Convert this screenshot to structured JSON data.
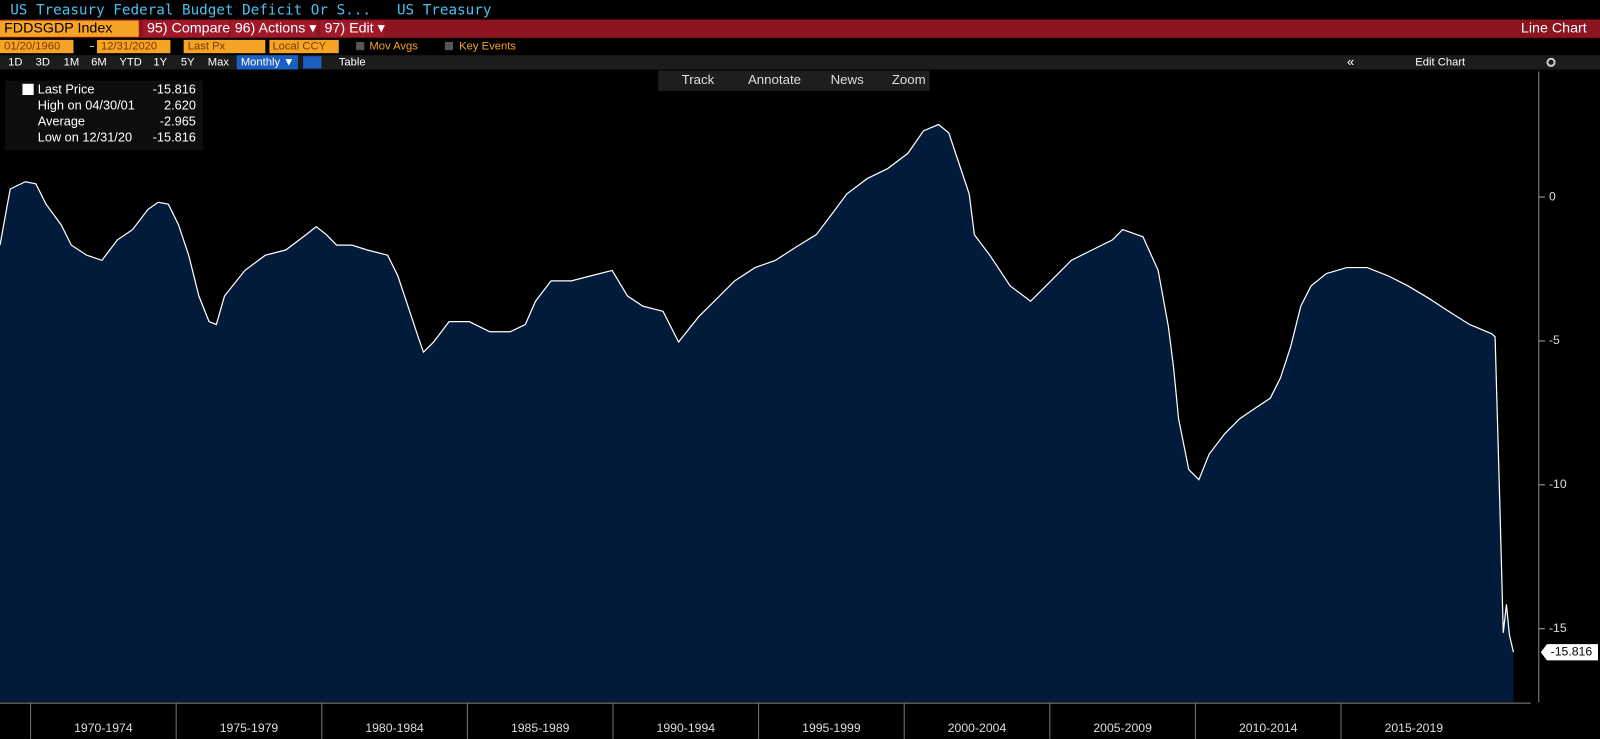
{
  "header": {
    "title": "US Treasury Federal Budget Deficit Or S...",
    "source": "US Treasury",
    "ticker": "FDDSGDP Index",
    "menu": [
      "95) Compare",
      "96) Actions ▾",
      "97) Edit ▾"
    ],
    "view": "Line Chart"
  },
  "controls": {
    "start_date": "01/20/1960",
    "end_date": "12/31/2020",
    "field": "Last Px",
    "currency": "Local CCY",
    "options": [
      "Mov Avgs",
      "Key Events"
    ],
    "ranges": [
      "1D",
      "3D",
      "1M",
      "6M",
      "YTD",
      "1Y",
      "5Y",
      "Max"
    ],
    "frequency": "Monthly ▼",
    "table": "Table",
    "edit_chart": "Edit Chart"
  },
  "toolbar": [
    "Track",
    "Annotate",
    "News",
    "Zoom"
  ],
  "legend": [
    {
      "label": "Last Price",
      "value": "-15.816"
    },
    {
      "label": "High on 04/30/01",
      "value": "2.620"
    },
    {
      "label": "Average",
      "value": "-2.965"
    },
    {
      "label": "Low on 12/31/20",
      "value": "-15.816"
    }
  ],
  "chart_data": {
    "type": "area",
    "color": "#ffffff",
    "fill": "#031b3a",
    "xlim": [
      1968.95,
      2021.51
    ],
    "ylim": [
      -17.55,
      4.36
    ],
    "xticks": [
      {
        "value": 1970,
        "label": "1970-1974"
      },
      {
        "value": 1975,
        "label": "1975-1979"
      },
      {
        "value": 1980,
        "label": "1980-1984"
      },
      {
        "value": 1985,
        "label": "1985-1989"
      },
      {
        "value": 1990,
        "label": "1990-1994"
      },
      {
        "value": 1995,
        "label": "1995-1999"
      },
      {
        "value": 2000,
        "label": "2000-2004"
      },
      {
        "value": 2005,
        "label": "2005-2009"
      },
      {
        "value": 2010,
        "label": "2010-2014"
      },
      {
        "value": 2015,
        "label": "2015-2019"
      }
    ],
    "yticks": [
      0,
      -5,
      -10,
      -15
    ],
    "series": [
      {
        "color": "#ffffff",
        "x": [
          1968.95,
          1969.3,
          1969.82,
          1970.18,
          1970.53,
          1971.05,
          1971.4,
          1971.93,
          1972.45,
          1972.98,
          1973.5,
          1974.03,
          1974.38,
          1974.73,
          1975.08,
          1975.43,
          1975.78,
          1976.13,
          1976.38,
          1976.66,
          1977.36,
          1978.06,
          1978.76,
          1979.46,
          1979.81,
          1980.16,
          1980.51,
          1981.04,
          1981.56,
          1982.26,
          1982.61,
          1982.96,
          1983.31,
          1983.49,
          1983.84,
          1984.37,
          1985.07,
          1985.77,
          1986.47,
          1986.99,
          1987.34,
          1987.87,
          1988.57,
          1989.27,
          1989.97,
          1990.5,
          1991.02,
          1991.72,
          1992.25,
          1992.95,
          1993.48,
          1994.18,
          1994.88,
          1995.58,
          1996.28,
          1996.98,
          1997.51,
          1998.03,
          1998.73,
          1999.43,
          2000.13,
          2000.66,
          2001.18,
          2001.53,
          2001.88,
          2002.23,
          2002.41,
          2002.94,
          2003.64,
          2004.34,
          2005.04,
          2005.74,
          2006.45,
          2007.15,
          2007.5,
          2008.2,
          2008.72,
          2009.07,
          2009.25,
          2009.42,
          2009.77,
          2010.12,
          2010.47,
          2011.0,
          2011.52,
          2012.05,
          2012.57,
          2012.92,
          2013.27,
          2013.62,
          2013.97,
          2014.5,
          2015.2,
          2015.9,
          2016.6,
          2017.3,
          2018.0,
          2018.7,
          2019.41,
          2020.18,
          2020.29,
          2020.46,
          2020.57,
          2020.68,
          2020.78,
          2020.92
        ],
        "values": [
          -1.67,
          0.28,
          0.53,
          0.46,
          -0.25,
          -0.96,
          -1.67,
          -2.02,
          -2.2,
          -1.49,
          -1.13,
          -0.43,
          -0.18,
          -0.25,
          -0.96,
          -2.02,
          -3.44,
          -4.33,
          -4.43,
          -3.44,
          -2.55,
          -2.02,
          -1.84,
          -1.31,
          -1.03,
          -1.31,
          -1.67,
          -1.67,
          -1.84,
          -2.02,
          -2.73,
          -3.79,
          -4.86,
          -5.39,
          -5.04,
          -4.33,
          -4.33,
          -4.68,
          -4.68,
          -4.43,
          -3.62,
          -2.91,
          -2.91,
          -2.73,
          -2.55,
          -3.44,
          -3.79,
          -3.97,
          -5.04,
          -4.15,
          -3.62,
          -2.91,
          -2.45,
          -2.2,
          -1.74,
          -1.31,
          -0.6,
          0.11,
          0.64,
          0.99,
          1.52,
          2.3,
          2.52,
          2.23,
          1.17,
          0.11,
          -1.31,
          -2.02,
          -3.09,
          -3.62,
          -2.91,
          -2.2,
          -1.84,
          -1.49,
          -1.13,
          -1.38,
          -2.55,
          -4.5,
          -5.92,
          -7.7,
          -9.47,
          -9.82,
          -8.94,
          -8.23,
          -7.7,
          -7.34,
          -6.99,
          -6.28,
          -5.21,
          -3.79,
          -3.09,
          -2.66,
          -2.45,
          -2.45,
          -2.73,
          -3.09,
          -3.51,
          -3.97,
          -4.43,
          -4.75,
          -4.86,
          -10.89,
          -15.14,
          -14.15,
          -15.21,
          -15.816
        ]
      }
    ]
  }
}
